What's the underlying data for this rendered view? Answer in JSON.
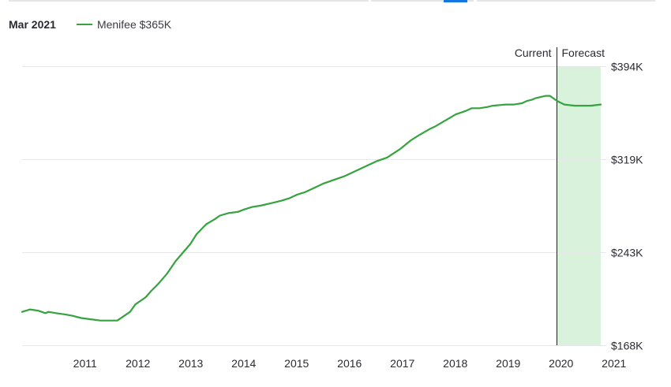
{
  "header": {
    "date_label": "Mar 2021",
    "legend_label": "Menifee $365K"
  },
  "colors": {
    "line": "#36a33f",
    "forecast_fill": "#d8f2dc",
    "grid": "#e8e8eb",
    "axis": "#1f1f1f",
    "tab_active": "#1277e1"
  },
  "chart_data": {
    "type": "line",
    "title": "",
    "xlabel": "",
    "ylabel": "",
    "x_ticks": [
      "2011",
      "2012",
      "2013",
      "2014",
      "2015",
      "2016",
      "2017",
      "2018",
      "2019",
      "2020",
      "2021"
    ],
    "y_ticks": [
      "$168K",
      "$243K",
      "$319K",
      "$394K"
    ],
    "ylim": [
      168,
      394
    ],
    "y_unit": "thousand USD",
    "xlim": [
      2010.31,
      2021.25
    ],
    "grid": true,
    "region_labels": {
      "current": "Current",
      "forecast": "Forecast"
    },
    "forecast_start": 2020.42,
    "series": [
      {
        "name": "Menifee",
        "x": [
          2010.31,
          2010.46,
          2010.61,
          2010.75,
          2010.81,
          2010.95,
          2011.11,
          2011.25,
          2011.43,
          2011.61,
          2011.79,
          2011.95,
          2012.11,
          2012.35,
          2012.45,
          2012.55,
          2012.65,
          2012.75,
          2012.89,
          2013.05,
          2013.21,
          2013.35,
          2013.49,
          2013.61,
          2013.79,
          2013.95,
          2014.05,
          2014.21,
          2014.39,
          2014.51,
          2014.66,
          2014.81,
          2015.01,
          2015.21,
          2015.36,
          2015.51,
          2015.66,
          2015.81,
          2016.01,
          2016.21,
          2016.41,
          2016.61,
          2016.81,
          2017.01,
          2017.21,
          2017.46,
          2017.66,
          2017.81,
          2018.01,
          2018.11,
          2018.31,
          2018.51,
          2018.71,
          2018.81,
          2018.96,
          2019.11,
          2019.21,
          2019.46,
          2019.61,
          2019.76,
          2019.86,
          2019.96,
          2020.01,
          2020.21,
          2020.29,
          2020.42,
          2020.56,
          2020.76,
          2021.06,
          2021.25
        ],
        "values": [
          195,
          197,
          196,
          194,
          195,
          194,
          193,
          192,
          190,
          189,
          188,
          188,
          188,
          195,
          201,
          204,
          207,
          212,
          218,
          226,
          236,
          243,
          250,
          258,
          266,
          270,
          273,
          275,
          276,
          278,
          280,
          281,
          283,
          285,
          287,
          290,
          292,
          295,
          299,
          302,
          305,
          309,
          313,
          317,
          320,
          327,
          334,
          338,
          343,
          345,
          350,
          355,
          358,
          360,
          360,
          361,
          362,
          363,
          363,
          364,
          366,
          367,
          368,
          370,
          370,
          366,
          363,
          362,
          362,
          363
        ]
      }
    ]
  }
}
